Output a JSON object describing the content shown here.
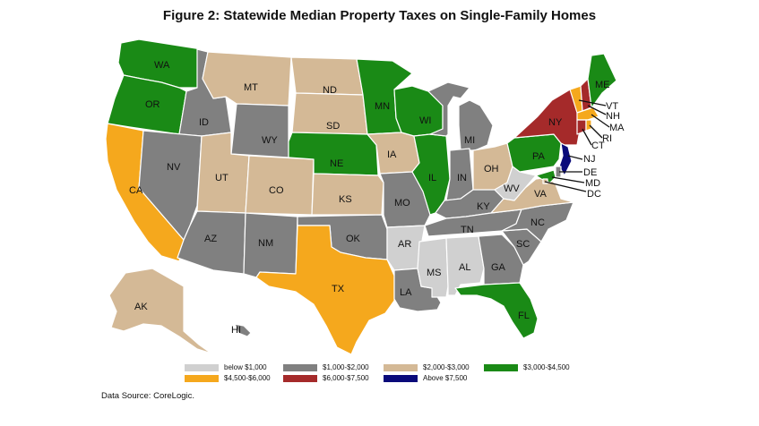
{
  "title": "Figure 2: Statewide Median Property Taxes on Single-Family Homes",
  "source": "Data Source: CoreLogic.",
  "colors": {
    "below $1,000": "#d0d0d0",
    "$1,000-$2,000": "#808080",
    "$2,000-$3,000": "#d4b996",
    "$3,000-$4,500": "#1a8a16",
    "$4,500-$6,000": "#f5a81d",
    "$6,000-$7,500": "#a52a2a",
    "Above $7,500": "#0a0a7a"
  },
  "legend": [
    {
      "label": "below $1,000",
      "color": "#d0d0d0"
    },
    {
      "label": "$1,000-$2,000",
      "color": "#808080"
    },
    {
      "label": "$2,000-$3,000",
      "color": "#d4b996"
    },
    {
      "label": "$3,000-$4,500",
      "color": "#1a8a16"
    },
    {
      "label": "$4,500-$6,000",
      "color": "#f5a81d"
    },
    {
      "label": "$6,000-$7,500",
      "color": "#a52a2a"
    },
    {
      "label": "Above $7,500",
      "color": "#0a0a7a"
    }
  ],
  "states": {
    "WA": "$3,000-$4,500",
    "OR": "$3,000-$4,500",
    "CA": "$4,500-$6,000",
    "ID": "$1,000-$2,000",
    "NV": "$1,000-$2,000",
    "MT": "$2,000-$3,000",
    "WY": "$1,000-$2,000",
    "UT": "$2,000-$3,000",
    "CO": "$2,000-$3,000",
    "AZ": "$1,000-$2,000",
    "NM": "$1,000-$2,000",
    "ND": "$2,000-$3,000",
    "SD": "$2,000-$3,000",
    "NE": "$3,000-$4,500",
    "KS": "$2,000-$3,000",
    "OK": "$1,000-$2,000",
    "TX": "$4,500-$6,000",
    "MN": "$3,000-$4,500",
    "IA": "$2,000-$3,000",
    "MO": "$1,000-$2,000",
    "AR": "below $1,000",
    "LA": "$1,000-$2,000",
    "WI": "$3,000-$4,500",
    "IL": "$3,000-$4,500",
    "MI": "$1,000-$2,000",
    "IN": "$1,000-$2,000",
    "OH": "$2,000-$3,000",
    "KY": "$1,000-$2,000",
    "TN": "$1,000-$2,000",
    "MS": "below $1,000",
    "AL": "below $1,000",
    "GA": "$1,000-$2,000",
    "FL": "$3,000-$4,500",
    "SC": "$1,000-$2,000",
    "NC": "$1,000-$2,000",
    "VA": "$2,000-$3,000",
    "WV": "below $1,000",
    "PA": "$3,000-$4,500",
    "NY": "$6,000-$7,500",
    "VT": "$4,500-$6,000",
    "NH": "$6,000-$7,500",
    "ME": "$3,000-$4,500",
    "MA": "$4,500-$6,000",
    "CT": "$6,000-$7,500",
    "RI": "$4,500-$6,000",
    "NJ": "Above $7,500",
    "DE": "$1,000-$2,000",
    "MD": "$3,000-$4,500",
    "DC": "$2,000-$3,000",
    "AK": "$2,000-$3,000",
    "HI": "$1,000-$2,000"
  }
}
